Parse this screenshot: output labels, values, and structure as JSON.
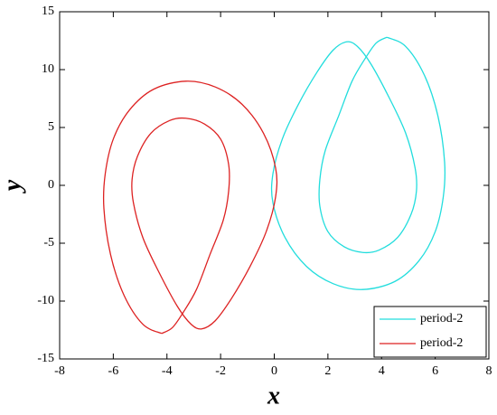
{
  "chart_data": {
    "type": "line",
    "x_label": "x",
    "y_label": "y",
    "xlim": [
      -8,
      8
    ],
    "xticks": [
      -8,
      -6,
      -4,
      -2,
      0,
      2,
      4,
      6,
      8
    ],
    "ylim": [
      -15,
      15
    ],
    "yticks": [
      -15,
      -10,
      -5,
      0,
      5,
      10,
      15
    ],
    "legend": "lower right",
    "series": [
      {
        "name": "period-2",
        "color": "#22dddd",
        "x": [
          4.2,
          4.9,
          5.6,
          6.1,
          6.35,
          6.3,
          6,
          5.4,
          4.5,
          3.3,
          2.2,
          1.2,
          0.4,
          -0.05,
          -0.05,
          0.3,
          0.9,
          1.6,
          2.2,
          2.7,
          3.1,
          3.6,
          4.3,
          4.9,
          5.25,
          5.3,
          5.1,
          4.6,
          3.9,
          3.3,
          2.6,
          2,
          1.7,
          1.7,
          1.9,
          2.4,
          2.9,
          3.4,
          3.8,
          4.2
        ],
        "values": [
          12.8,
          12,
          9.5,
          6,
          2,
          -1,
          -4,
          -6.5,
          -8.3,
          -9,
          -8.5,
          -7,
          -4.5,
          -1.5,
          1,
          4,
          7,
          9.8,
          11.7,
          12.4,
          12,
          10.5,
          7.5,
          4.5,
          1.5,
          -0.5,
          -2.5,
          -4.5,
          -5.6,
          -5.8,
          -5.3,
          -4,
          -1.8,
          0.5,
          3,
          6,
          9,
          11,
          12.3,
          12.8
        ]
      },
      {
        "name": "period-2",
        "color": "#dd2222",
        "x": [
          -4.2,
          -4.9,
          -5.6,
          -6.1,
          -6.35,
          -6.3,
          -6,
          -5.4,
          -4.5,
          -3.3,
          -2.2,
          -1.2,
          -0.4,
          0.05,
          0.05,
          -0.3,
          -0.9,
          -1.6,
          -2.2,
          -2.7,
          -3.1,
          -3.6,
          -4.3,
          -4.9,
          -5.25,
          -5.3,
          -5.1,
          -4.6,
          -3.9,
          -3.3,
          -2.6,
          -2,
          -1.7,
          -1.7,
          -1.9,
          -2.4,
          -2.9,
          -3.4,
          -3.8,
          -4.2
        ],
        "values": [
          -12.8,
          -12,
          -9.5,
          -6,
          -2,
          1,
          4,
          6.5,
          8.3,
          9,
          8.5,
          7,
          4.5,
          1.5,
          -1,
          -4,
          -7,
          -9.8,
          -11.7,
          -12.4,
          -12,
          -10.5,
          -7.5,
          -4.5,
          -1.5,
          0.5,
          2.5,
          4.5,
          5.6,
          5.8,
          5.3,
          4,
          1.8,
          -0.5,
          -3,
          -6,
          -9,
          -11,
          -12.3,
          -12.8
        ]
      }
    ]
  }
}
